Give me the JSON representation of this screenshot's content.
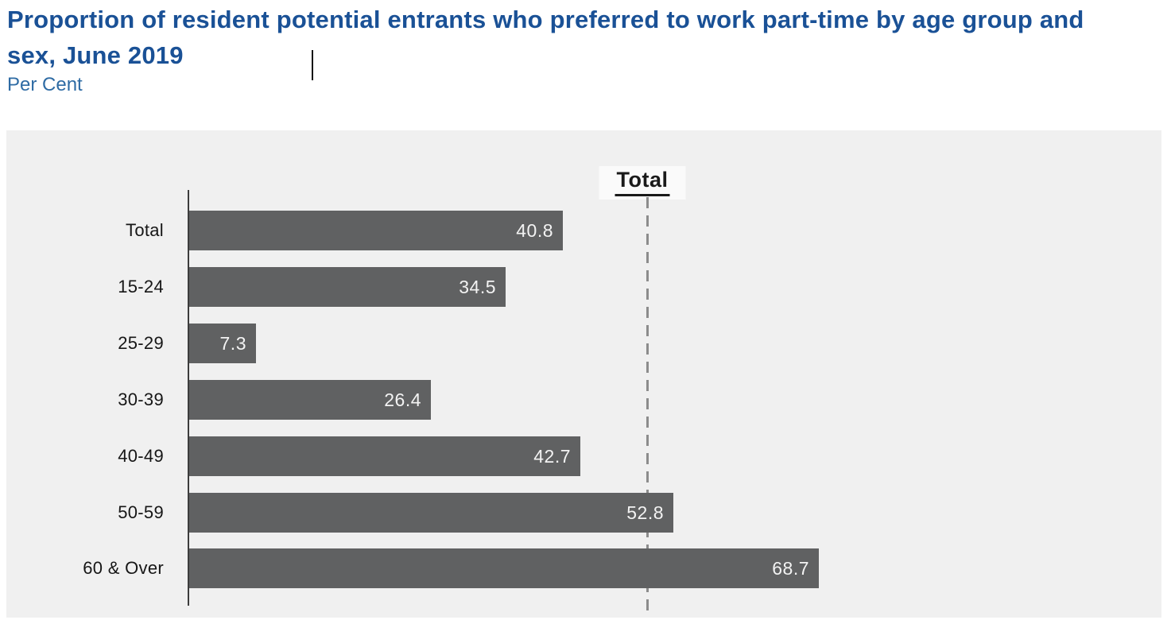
{
  "header": {
    "title": "Proportion of resident potential entrants who preferred to work part-time by age group and sex, June 2019",
    "subtitle": "Per Cent"
  },
  "chart_data": {
    "type": "bar",
    "orientation": "horizontal",
    "title": "Proportion of resident potential entrants who preferred to work part-time by age group and sex, June 2019",
    "unit_label": "Per Cent",
    "categories": [
      "Total",
      "15-24",
      "25-29",
      "30-39",
      "40-49",
      "50-59",
      "60 & Over"
    ],
    "values": [
      40.8,
      34.5,
      7.3,
      26.4,
      42.7,
      52.8,
      68.7
    ],
    "value_labels": [
      "40.8",
      "34.5",
      "7.3",
      "26.4",
      "42.7",
      "52.8",
      "68.7"
    ],
    "reference_line": {
      "label": "Total",
      "x": 50
    },
    "xlim": [
      0,
      106
    ],
    "grid": false,
    "legend": "none"
  },
  "colors": {
    "title_text": "#1a5196",
    "subtitle_text": "#2e6ba4",
    "bar_fill": "#606162",
    "bar_value_text": "#f3f3f3",
    "category_text": "#161616",
    "panel_background": "#f0f0f0",
    "axis_line": "#3c3c3c",
    "reference_line": "#8c8c8c",
    "reference_label_text": "#1a1a1a",
    "reference_label_background": "#fafafa"
  }
}
